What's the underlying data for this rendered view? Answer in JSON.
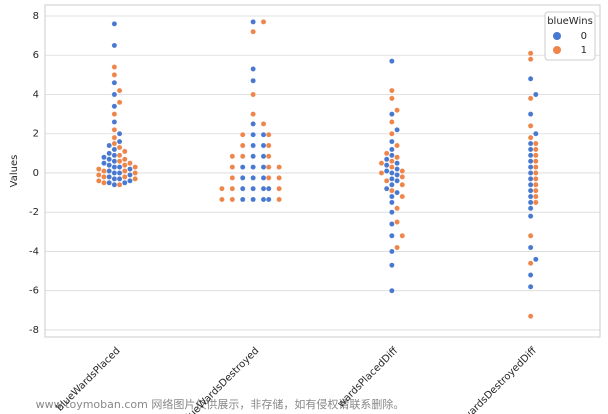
{
  "chart_data": {
    "type": "swarm",
    "y_label": "Values",
    "categories": [
      "blueWardsPlaced",
      "blueWardsDestroyed",
      "wardsPlacedDiff",
      "wardsDestroyedDiff"
    ],
    "legend_title": "blueWins",
    "legend_position": "upper right",
    "series": [
      {
        "name": "0",
        "color": "#4878d0",
        "values": [
          [
            -0.6,
            -0.5,
            -0.5,
            -0.4,
            -0.3,
            -0.3,
            -0.2,
            -0.1,
            0,
            0,
            0.1,
            0.2,
            0.3,
            0.3,
            0.4,
            0.5,
            0.6,
            0.7,
            0.8,
            0.9,
            1.0,
            1.2,
            1.4,
            1.6,
            2.0,
            2.6,
            3.4,
            4.0,
            4.6,
            6.5,
            7.6
          ],
          [
            -1.35,
            -1.35,
            -1.35,
            -1.35,
            -0.8,
            -0.8,
            -0.8,
            -0.8,
            -0.25,
            -0.25,
            -0.25,
            0.3,
            0.3,
            0.3,
            0.85,
            0.85,
            1.4,
            1.4,
            1.95,
            1.95,
            2.5,
            4.7,
            5.3,
            7.7
          ],
          [
            -6.0,
            -4.7,
            -4.0,
            -3.2,
            -2.6,
            -2.0,
            -1.5,
            -1.2,
            -1.0,
            -0.8,
            -0.6,
            -0.4,
            -0.3,
            -0.1,
            0,
            0.1,
            0.2,
            0.4,
            0.5,
            0.7,
            0.9,
            1.2,
            1.6,
            2.2,
            3.0,
            5.7
          ],
          [
            -5.8,
            -5.2,
            -4.4,
            -3.8,
            -2.2,
            -1.8,
            -1.5,
            -1.2,
            -0.9,
            -0.6,
            -0.3,
            0,
            0.3,
            0.6,
            0.9,
            1.2,
            1.5,
            2.0,
            3.0,
            4.0,
            4.8
          ]
        ]
      },
      {
        "name": "1",
        "color": "#ee854a",
        "values": [
          [
            -0.6,
            -0.5,
            -0.4,
            -0.3,
            -0.2,
            -0.2,
            -0.1,
            0,
            0.1,
            0.1,
            0.2,
            0.3,
            0.4,
            0.5,
            0.6,
            0.7,
            0.9,
            1.1,
            1.3,
            1.5,
            1.8,
            2.2,
            3.0,
            3.6,
            4.2,
            5.0,
            5.4
          ],
          [
            -1.35,
            -1.35,
            -1.35,
            -0.8,
            -0.8,
            -0.8,
            -0.25,
            -0.25,
            -0.25,
            0.3,
            0.3,
            0.3,
            0.85,
            0.85,
            0.85,
            1.4,
            1.4,
            1.95,
            1.95,
            2.5,
            3.0,
            4.0,
            7.2,
            7.7
          ],
          [
            -3.8,
            -3.2,
            -2.5,
            -1.8,
            -1.2,
            -0.9,
            -0.6,
            -0.4,
            -0.2,
            0,
            0.1,
            0.3,
            0.5,
            0.6,
            0.8,
            1.0,
            1.4,
            2.0,
            2.6,
            3.2,
            3.8,
            4.2
          ],
          [
            -7.3,
            -4.6,
            -3.2,
            -1.5,
            -1.2,
            -0.9,
            -0.6,
            -0.3,
            0,
            0.3,
            0.6,
            0.9,
            1.2,
            1.5,
            1.8,
            2.4,
            3.8,
            5.8,
            6.1
          ]
        ]
      }
    ],
    "ylim": [
      -8.36,
      8.56
    ],
    "yticks": [
      -8,
      -6,
      -4,
      -2,
      0,
      2,
      4,
      6,
      8
    ],
    "grid": true
  },
  "watermark": "www.toymoban.com 网络图片仅供展示，非存储，如有侵权请联系删除。"
}
